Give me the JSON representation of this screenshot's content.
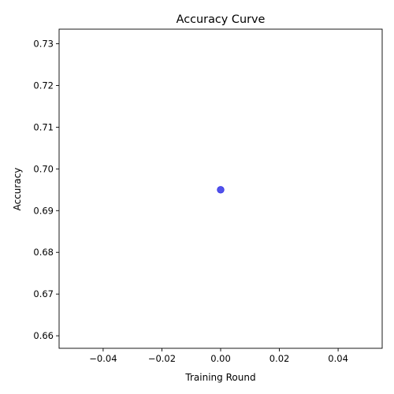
{
  "chart_data": {
    "type": "scatter",
    "title": "Accuracy Curve",
    "xlabel": "Training Round",
    "ylabel": "Accuracy",
    "xlim": [
      -0.055,
      0.055
    ],
    "ylim": [
      0.657,
      0.7335
    ],
    "xticks": [
      -0.04,
      -0.02,
      0.0,
      0.02,
      0.04
    ],
    "xtick_labels": [
      "−0.04",
      "−0.02",
      "0.00",
      "0.02",
      "0.04"
    ],
    "yticks": [
      0.66,
      0.67,
      0.68,
      0.69,
      0.7,
      0.71,
      0.72,
      0.73
    ],
    "ytick_labels": [
      "0.66",
      "0.67",
      "0.68",
      "0.69",
      "0.70",
      "0.71",
      "0.72",
      "0.73"
    ],
    "grid": false,
    "legend": "none",
    "series": [
      {
        "color": "#3333e6",
        "points": [
          {
            "x": 0,
            "y": 0.695
          }
        ]
      }
    ]
  }
}
